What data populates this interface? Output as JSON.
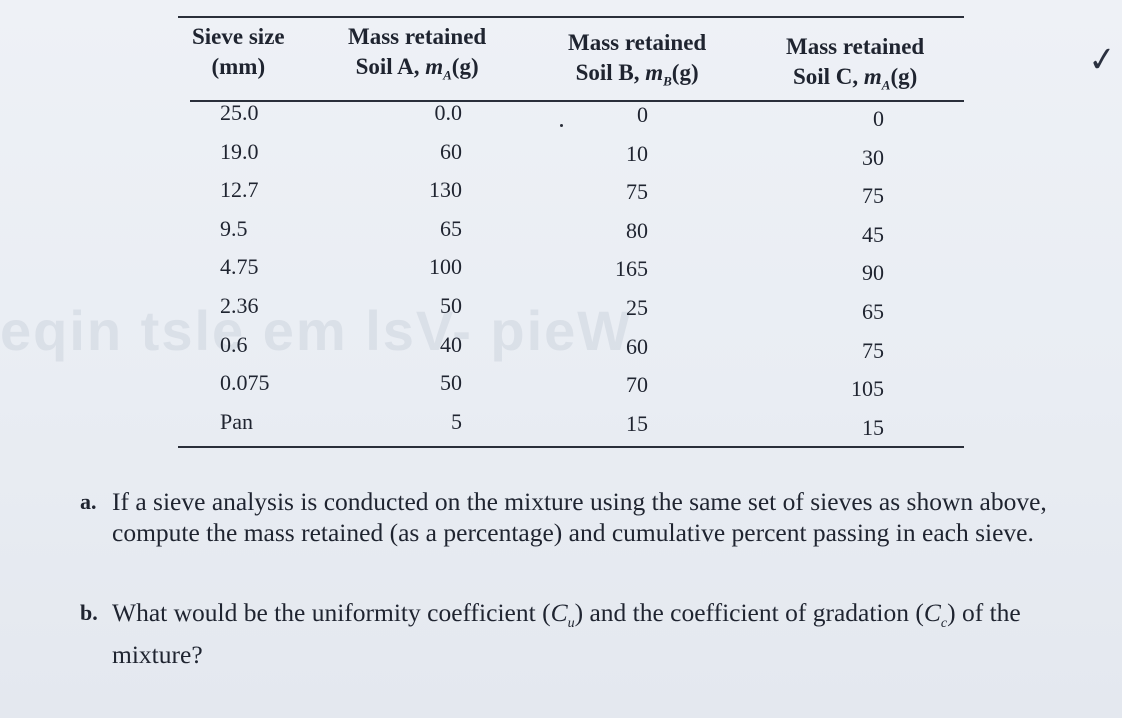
{
  "table": {
    "headers": {
      "sieve": [
        "Sieve size",
        "(mm)"
      ],
      "soil_a": [
        "Mass retained",
        "Soil A, ",
        "m",
        "A",
        "(g)"
      ],
      "soil_b": [
        "Mass retained",
        "Soil B, ",
        "m",
        "B",
        "(g)"
      ],
      "soil_c": [
        "Mass retained",
        "Soil C, ",
        "m",
        "A",
        "(g)"
      ]
    },
    "rows": [
      {
        "sieve": "25.0",
        "a": "0.0",
        "b": "0",
        "c": "0"
      },
      {
        "sieve": "19.0",
        "a": "60",
        "b": "10",
        "c": "30"
      },
      {
        "sieve": "12.7",
        "a": "130",
        "b": "75",
        "c": "75"
      },
      {
        "sieve": "9.5",
        "a": "65",
        "b": "80",
        "c": "45"
      },
      {
        "sieve": "4.75",
        "a": "100",
        "b": "165",
        "c": "90"
      },
      {
        "sieve": "2.36",
        "a": "50",
        "b": "25",
        "c": "65"
      },
      {
        "sieve": "0.6",
        "a": "40",
        "b": "60",
        "c": "75"
      },
      {
        "sieve": "0.075",
        "a": "50",
        "b": "70",
        "c": "105"
      },
      {
        "sieve": "Pan",
        "a": "5",
        "b": "15",
        "c": "15"
      }
    ]
  },
  "questions": {
    "a": {
      "label": "a.",
      "text": "If a sieve analysis is conducted on the mixture using the same set of sieves as shown above, compute the mass retained (as a percentage) and cumulative percent passing in each sieve."
    },
    "b": {
      "label": "b.",
      "text_1": "What would be the uniformity coefficient (",
      "cu_main": "C",
      "cu_sub": "u",
      "text_2": ") and the coefficient of gradation (",
      "cc_main": "C",
      "cc_sub": "c",
      "text_3": ") of the mixture?"
    }
  },
  "watermark_text": "eqin  tsle  em  lsV-  pieW",
  "check_icon": "check-mark-icon"
}
